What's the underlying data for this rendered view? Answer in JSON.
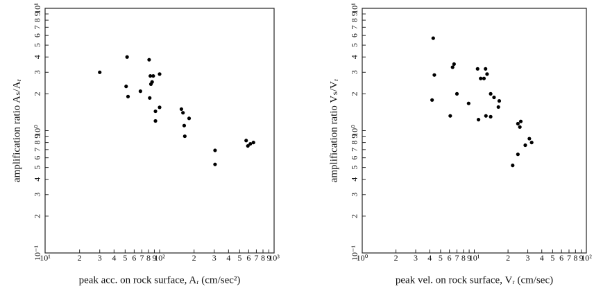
{
  "chart_data": [
    {
      "type": "scatter",
      "xscale": "log",
      "yscale": "log",
      "color": "#000000",
      "xlabel": "peak acc. on rock surface, Aᵣ (cm/sec²)",
      "ylabel": "amplification ratio Aₛ/Aᵣ",
      "xlim": [
        10,
        1000
      ],
      "ylim": [
        0.1,
        10
      ],
      "xticks": [
        {
          "value": 10,
          "label": "10¹"
        },
        {
          "value": 20,
          "label": "2"
        },
        {
          "value": 30,
          "label": "3"
        },
        {
          "value": 40,
          "label": "4"
        },
        {
          "value": 50,
          "label": "5"
        },
        {
          "value": 60,
          "label": "6"
        },
        {
          "value": 70,
          "label": "7"
        },
        {
          "value": 80,
          "label": "8"
        },
        {
          "value": 90,
          "label": "9"
        },
        {
          "value": 100,
          "label": "10²"
        },
        {
          "value": 200,
          "label": "2"
        },
        {
          "value": 300,
          "label": "3"
        },
        {
          "value": 400,
          "label": "4"
        },
        {
          "value": 500,
          "label": "5"
        },
        {
          "value": 600,
          "label": "6"
        },
        {
          "value": 700,
          "label": "7"
        },
        {
          "value": 800,
          "label": "8"
        },
        {
          "value": 900,
          "label": "9"
        },
        {
          "value": 1000,
          "label": "10³"
        }
      ],
      "yticks": [
        {
          "value": 0.1,
          "label": "10⁻¹"
        },
        {
          "value": 0.2,
          "label": "2"
        },
        {
          "value": 0.3,
          "label": "3"
        },
        {
          "value": 0.4,
          "label": "4"
        },
        {
          "value": 0.5,
          "label": "5"
        },
        {
          "value": 0.6,
          "label": "6"
        },
        {
          "value": 0.7,
          "label": "7"
        },
        {
          "value": 0.8,
          "label": "8"
        },
        {
          "value": 0.9,
          "label": "9"
        },
        {
          "value": 1,
          "label": "10⁰"
        },
        2,
        3,
        4,
        5,
        6,
        7,
        8,
        9,
        {
          "value": 10,
          "label": "10¹"
        }
      ],
      "x": [
        30,
        52,
        51,
        53,
        68,
        81,
        83,
        86,
        84,
        88,
        82,
        100,
        92,
        92,
        100,
        155,
        160,
        181,
        164,
        166,
        305,
        305,
        570,
        620,
        660,
        590
      ],
      "values": [
        3.0,
        4.0,
        2.3,
        1.9,
        2.1,
        3.8,
        2.8,
        2.5,
        2.4,
        2.8,
        1.85,
        2.9,
        1.44,
        1.2,
        1.55,
        1.5,
        1.4,
        1.26,
        1.1,
        0.9,
        0.69,
        0.53,
        0.83,
        0.78,
        0.8,
        0.75
      ]
    },
    {
      "type": "scatter",
      "xscale": "log",
      "yscale": "log",
      "color": "#000000",
      "xlabel": "peak vel. on rock surface, Vᵣ (cm/sec)",
      "ylabel": "amplification ratio Vₛ/Vᵣ",
      "xlim": [
        1,
        100
      ],
      "ylim": [
        0.1,
        10
      ],
      "xticks": [
        {
          "value": 1,
          "label": "10⁰"
        },
        2,
        3,
        4,
        5,
        6,
        7,
        8,
        9,
        {
          "value": 10,
          "label": "10¹"
        },
        {
          "value": 20,
          "label": "2"
        },
        {
          "value": 30,
          "label": "3"
        },
        {
          "value": 40,
          "label": "4"
        },
        {
          "value": 50,
          "label": "5"
        },
        {
          "value": 60,
          "label": "6"
        },
        {
          "value": 70,
          "label": "7"
        },
        {
          "value": 80,
          "label": "8"
        },
        {
          "value": 90,
          "label": "9"
        },
        {
          "value": 100,
          "label": "10²"
        }
      ],
      "yticks": [
        {
          "value": 0.1,
          "label": "10⁻¹"
        },
        {
          "value": 0.2,
          "label": "2"
        },
        {
          "value": 0.3,
          "label": "3"
        },
        {
          "value": 0.4,
          "label": "4"
        },
        {
          "value": 0.5,
          "label": "5"
        },
        {
          "value": 0.6,
          "label": "6"
        },
        {
          "value": 0.7,
          "label": "7"
        },
        {
          "value": 0.8,
          "label": "8"
        },
        {
          "value": 0.9,
          "label": "9"
        },
        {
          "value": 1,
          "label": "10⁰"
        },
        2,
        3,
        4,
        5,
        6,
        7,
        8,
        9,
        {
          "value": 10,
          "label": "10¹"
        }
      ],
      "x": [
        4.3,
        4.4,
        4.2,
        6.4,
        6.6,
        7.0,
        6.1,
        8.9,
        10.7,
        11.4,
        12.2,
        12.6,
        13,
        10.9,
        12.7,
        14,
        14,
        15,
        16.7,
        16.4,
        24.5,
        26,
        25.5,
        28.5,
        31,
        32.5,
        24.5,
        22
      ],
      "values": [
        5.7,
        2.85,
        1.78,
        3.3,
        3.5,
        2.0,
        1.32,
        1.67,
        3.2,
        2.67,
        2.67,
        3.2,
        2.9,
        1.23,
        1.32,
        1.3,
        2.0,
        1.87,
        1.75,
        1.56,
        1.14,
        1.19,
        1.07,
        0.76,
        0.86,
        0.8,
        0.64,
        0.52
      ]
    }
  ]
}
